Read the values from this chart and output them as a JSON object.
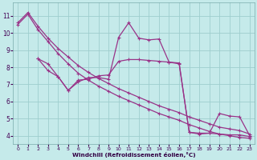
{
  "xlabel": "Windchill (Refroidissement éolien,°C)",
  "background_color": "#c5eaea",
  "grid_color": "#9ecece",
  "line_color": "#993388",
  "xlim": [
    -0.5,
    23.5
  ],
  "ylim": [
    3.5,
    11.8
  ],
  "xticks": [
    0,
    1,
    2,
    3,
    4,
    5,
    6,
    7,
    8,
    9,
    10,
    11,
    12,
    13,
    14,
    15,
    16,
    17,
    18,
    19,
    20,
    21,
    22,
    23
  ],
  "yticks": [
    4,
    5,
    6,
    7,
    8,
    9,
    10,
    11
  ],
  "line1_x": [
    0,
    1,
    2,
    3,
    4,
    5,
    6,
    7,
    8,
    9,
    10,
    11,
    12,
    13,
    14,
    15,
    16,
    17,
    18,
    19,
    20,
    21,
    22,
    23
  ],
  "line1_y": [
    10.6,
    11.2,
    10.4,
    9.7,
    9.1,
    8.6,
    8.1,
    7.7,
    7.35,
    7.05,
    6.75,
    6.5,
    6.25,
    6.0,
    5.75,
    5.55,
    5.35,
    5.1,
    4.9,
    4.7,
    4.5,
    4.4,
    4.3,
    4.1
  ],
  "line2_x": [
    0,
    1,
    2,
    3,
    4,
    5,
    6,
    7,
    8,
    9,
    10,
    11,
    12,
    13,
    14,
    15,
    16,
    17,
    18,
    19,
    20,
    21,
    22,
    23
  ],
  "line2_y": [
    10.5,
    11.1,
    10.2,
    9.5,
    8.8,
    8.2,
    7.65,
    7.25,
    6.9,
    6.6,
    6.3,
    6.05,
    5.8,
    5.55,
    5.3,
    5.1,
    4.9,
    4.65,
    4.45,
    4.25,
    4.1,
    4.0,
    3.9,
    3.85
  ],
  "line3_x": [
    2,
    3,
    4,
    5,
    6,
    7,
    8,
    9,
    10,
    11,
    12,
    13,
    14,
    15,
    16,
    17,
    18,
    19,
    20,
    21,
    22,
    23
  ],
  "line3_y": [
    8.5,
    7.8,
    7.45,
    6.65,
    7.15,
    7.4,
    7.4,
    7.3,
    9.75,
    10.6,
    9.7,
    9.6,
    9.65,
    8.3,
    8.25,
    4.2,
    4.15,
    4.15,
    5.3,
    5.15,
    5.1,
    4.0
  ],
  "line4_x": [
    2,
    3,
    4,
    5,
    6,
    7,
    8,
    9,
    10,
    11,
    12,
    13,
    14,
    15,
    16,
    17,
    18,
    19,
    20,
    21,
    22,
    23
  ],
  "line4_y": [
    8.5,
    8.2,
    7.45,
    6.65,
    7.25,
    7.3,
    7.5,
    7.55,
    8.35,
    8.45,
    8.45,
    8.4,
    8.35,
    8.3,
    8.2,
    4.2,
    4.1,
    4.15,
    4.1,
    4.05,
    4.05,
    3.95
  ]
}
